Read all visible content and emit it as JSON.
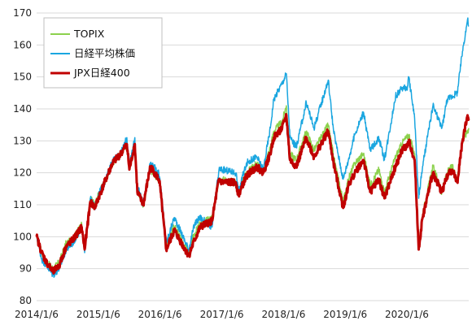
{
  "chart_data": {
    "type": "line",
    "title": "",
    "xlabel": "",
    "ylabel": "",
    "ylim": [
      80,
      170
    ],
    "yticks": [
      80,
      90,
      100,
      110,
      120,
      130,
      140,
      150,
      160,
      170
    ],
    "x_tick_labels": [
      "2014/1/6",
      "2015/1/6",
      "2016/1/6",
      "2017/1/6",
      "2018/1/6",
      "2019/1/6",
      "2020/1/6"
    ],
    "xlim": [
      "2014-01-06",
      "2021-01-06"
    ],
    "grid": "horizontal",
    "legend_position": "top-left",
    "series": [
      {
        "name": "TOPIX",
        "color": "#8cd14d",
        "stroke_width": 1.5,
        "points": [
          [
            "2014-01-06",
            100
          ],
          [
            "2014-02-05",
            95
          ],
          [
            "2014-03-05",
            92
          ],
          [
            "2014-04-14",
            90
          ],
          [
            "2014-05-20",
            92
          ],
          [
            "2014-06-30",
            98
          ],
          [
            "2014-08-08",
            99
          ],
          [
            "2014-09-30",
            104
          ],
          [
            "2014-10-17",
            96
          ],
          [
            "2014-11-20",
            112
          ],
          [
            "2014-12-16",
            110
          ],
          [
            "2015-01-06",
            113
          ],
          [
            "2015-02-20",
            118
          ],
          [
            "2015-03-31",
            123
          ],
          [
            "2015-05-20",
            126
          ],
          [
            "2015-06-24",
            129
          ],
          [
            "2015-07-09",
            121
          ],
          [
            "2015-08-10",
            130
          ],
          [
            "2015-08-25",
            115
          ],
          [
            "2015-09-29",
            110
          ],
          [
            "2015-11-10",
            121
          ],
          [
            "2015-12-30",
            118
          ],
          [
            "2016-01-06",
            117
          ],
          [
            "2016-02-12",
            98
          ],
          [
            "2016-03-31",
            103
          ],
          [
            "2016-06-24",
            95
          ],
          [
            "2016-07-29",
            101
          ],
          [
            "2016-08-31",
            104
          ],
          [
            "2016-11-09",
            106
          ],
          [
            "2016-12-20",
            118
          ],
          [
            "2017-01-06",
            118
          ],
          [
            "2017-03-31",
            117
          ],
          [
            "2017-04-14",
            114
          ],
          [
            "2017-05-31",
            120
          ],
          [
            "2017-07-31",
            123
          ],
          [
            "2017-09-08",
            121
          ],
          [
            "2017-10-20",
            128
          ],
          [
            "2017-11-09",
            133
          ],
          [
            "2017-12-29",
            136
          ],
          [
            "2018-01-23",
            141
          ],
          [
            "2018-02-13",
            126
          ],
          [
            "2018-03-23",
            124
          ],
          [
            "2018-05-21",
            133
          ],
          [
            "2018-07-05",
            127
          ],
          [
            "2018-09-28",
            135
          ],
          [
            "2018-10-29",
            125
          ],
          [
            "2018-12-25",
            111
          ],
          [
            "2019-01-25",
            118
          ],
          [
            "2019-03-04",
            123
          ],
          [
            "2019-04-24",
            126
          ],
          [
            "2019-06-03",
            116
          ],
          [
            "2019-07-24",
            121
          ],
          [
            "2019-08-26",
            114
          ],
          [
            "2019-10-31",
            125
          ],
          [
            "2019-12-17",
            130
          ],
          [
            "2020-01-06",
            131
          ],
          [
            "2020-01-17",
            132
          ],
          [
            "2020-02-21",
            126
          ],
          [
            "2020-03-16",
            98
          ],
          [
            "2020-04-08",
            107
          ],
          [
            "2020-06-08",
            122
          ],
          [
            "2020-07-31",
            114
          ],
          [
            "2020-08-31",
            120
          ],
          [
            "2020-09-30",
            122
          ],
          [
            "2020-10-30",
            118
          ],
          [
            "2020-11-30",
            130
          ],
          [
            "2020-12-30",
            133
          ],
          [
            "2021-01-06",
            134
          ]
        ]
      },
      {
        "name": "日経平均株価",
        "color": "#1aa6e0",
        "stroke_width": 1.5,
        "points": [
          [
            "2014-01-06",
            100
          ],
          [
            "2014-02-05",
            93
          ],
          [
            "2014-03-05",
            91
          ],
          [
            "2014-04-14",
            88
          ],
          [
            "2014-05-20",
            90
          ],
          [
            "2014-06-30",
            96
          ],
          [
            "2014-08-08",
            98
          ],
          [
            "2014-09-30",
            103
          ],
          [
            "2014-10-17",
            95
          ],
          [
            "2014-11-20",
            112
          ],
          [
            "2014-12-16",
            109
          ],
          [
            "2015-01-06",
            113
          ],
          [
            "2015-02-20",
            118
          ],
          [
            "2015-03-31",
            124
          ],
          [
            "2015-05-20",
            126
          ],
          [
            "2015-06-24",
            131
          ],
          [
            "2015-07-09",
            122
          ],
          [
            "2015-08-10",
            131
          ],
          [
            "2015-08-25",
            116
          ],
          [
            "2015-09-29",
            110
          ],
          [
            "2015-11-10",
            123
          ],
          [
            "2015-12-30",
            120
          ],
          [
            "2016-01-06",
            118
          ],
          [
            "2016-02-12",
            98
          ],
          [
            "2016-03-31",
            106
          ],
          [
            "2016-06-24",
            96
          ],
          [
            "2016-07-29",
            104
          ],
          [
            "2016-08-31",
            106
          ],
          [
            "2016-11-09",
            103
          ],
          [
            "2016-12-20",
            121
          ],
          [
            "2017-01-06",
            121
          ],
          [
            "2017-03-31",
            120
          ],
          [
            "2017-04-14",
            114
          ],
          [
            "2017-05-31",
            123
          ],
          [
            "2017-07-31",
            125
          ],
          [
            "2017-09-08",
            121
          ],
          [
            "2017-10-20",
            134
          ],
          [
            "2017-11-09",
            143
          ],
          [
            "2017-12-29",
            148
          ],
          [
            "2018-01-23",
            151
          ],
          [
            "2018-02-13",
            131
          ],
          [
            "2018-03-23",
            128
          ],
          [
            "2018-05-21",
            142
          ],
          [
            "2018-07-05",
            134
          ],
          [
            "2018-09-28",
            149
          ],
          [
            "2018-10-29",
            133
          ],
          [
            "2018-12-25",
            118
          ],
          [
            "2019-01-25",
            124
          ],
          [
            "2019-03-04",
            132
          ],
          [
            "2019-04-24",
            139
          ],
          [
            "2019-06-03",
            127
          ],
          [
            "2019-07-24",
            131
          ],
          [
            "2019-08-26",
            124
          ],
          [
            "2019-10-31",
            144
          ],
          [
            "2019-12-17",
            147
          ],
          [
            "2020-01-06",
            146
          ],
          [
            "2020-01-17",
            150
          ],
          [
            "2020-02-21",
            137
          ],
          [
            "2020-03-16",
            112
          ],
          [
            "2020-04-08",
            122
          ],
          [
            "2020-06-08",
            141
          ],
          [
            "2020-07-31",
            134
          ],
          [
            "2020-08-31",
            143
          ],
          [
            "2020-09-30",
            144
          ],
          [
            "2020-10-30",
            145
          ],
          [
            "2020-11-30",
            158
          ],
          [
            "2020-12-30",
            168
          ],
          [
            "2021-01-06",
            166
          ]
        ]
      },
      {
        "name": "JPX日経400",
        "color": "#c00000",
        "stroke_width": 3,
        "points": [
          [
            "2014-01-06",
            100
          ],
          [
            "2014-02-05",
            95
          ],
          [
            "2014-03-05",
            92
          ],
          [
            "2014-04-14",
            89
          ],
          [
            "2014-05-20",
            91
          ],
          [
            "2014-06-30",
            97
          ],
          [
            "2014-08-08",
            99
          ],
          [
            "2014-09-30",
            103
          ],
          [
            "2014-10-17",
            96
          ],
          [
            "2014-11-20",
            111
          ],
          [
            "2014-12-16",
            109
          ],
          [
            "2015-01-06",
            112
          ],
          [
            "2015-02-20",
            118
          ],
          [
            "2015-03-31",
            123
          ],
          [
            "2015-05-20",
            126
          ],
          [
            "2015-06-24",
            129
          ],
          [
            "2015-07-09",
            121
          ],
          [
            "2015-08-10",
            129
          ],
          [
            "2015-08-25",
            114
          ],
          [
            "2015-09-29",
            110
          ],
          [
            "2015-11-10",
            122
          ],
          [
            "2015-12-30",
            118
          ],
          [
            "2016-01-06",
            116
          ],
          [
            "2016-02-12",
            96
          ],
          [
            "2016-03-31",
            102
          ],
          [
            "2016-06-24",
            94
          ],
          [
            "2016-07-29",
            99
          ],
          [
            "2016-08-31",
            103
          ],
          [
            "2016-11-09",
            105
          ],
          [
            "2016-12-20",
            118
          ],
          [
            "2017-01-06",
            117
          ],
          [
            "2017-03-31",
            117
          ],
          [
            "2017-04-14",
            113
          ],
          [
            "2017-05-31",
            119
          ],
          [
            "2017-07-31",
            122
          ],
          [
            "2017-09-08",
            120
          ],
          [
            "2017-10-20",
            126
          ],
          [
            "2017-11-09",
            131
          ],
          [
            "2017-12-29",
            134
          ],
          [
            "2018-01-23",
            138
          ],
          [
            "2018-02-13",
            124
          ],
          [
            "2018-03-23",
            122
          ],
          [
            "2018-05-21",
            131
          ],
          [
            "2018-07-05",
            125
          ],
          [
            "2018-09-28",
            133
          ],
          [
            "2018-10-29",
            123
          ],
          [
            "2018-12-25",
            109
          ],
          [
            "2019-01-25",
            116
          ],
          [
            "2019-03-04",
            120
          ],
          [
            "2019-04-24",
            124
          ],
          [
            "2019-06-03",
            114
          ],
          [
            "2019-07-24",
            118
          ],
          [
            "2019-08-26",
            112
          ],
          [
            "2019-10-31",
            122
          ],
          [
            "2019-12-17",
            128
          ],
          [
            "2020-01-06",
            128
          ],
          [
            "2020-01-17",
            130
          ],
          [
            "2020-02-21",
            124
          ],
          [
            "2020-03-16",
            96
          ],
          [
            "2020-04-08",
            106
          ],
          [
            "2020-06-08",
            120
          ],
          [
            "2020-07-31",
            114
          ],
          [
            "2020-08-31",
            119
          ],
          [
            "2020-09-30",
            121
          ],
          [
            "2020-10-30",
            117
          ],
          [
            "2020-11-30",
            130
          ],
          [
            "2020-12-30",
            138
          ],
          [
            "2021-01-06",
            137
          ]
        ]
      }
    ]
  }
}
